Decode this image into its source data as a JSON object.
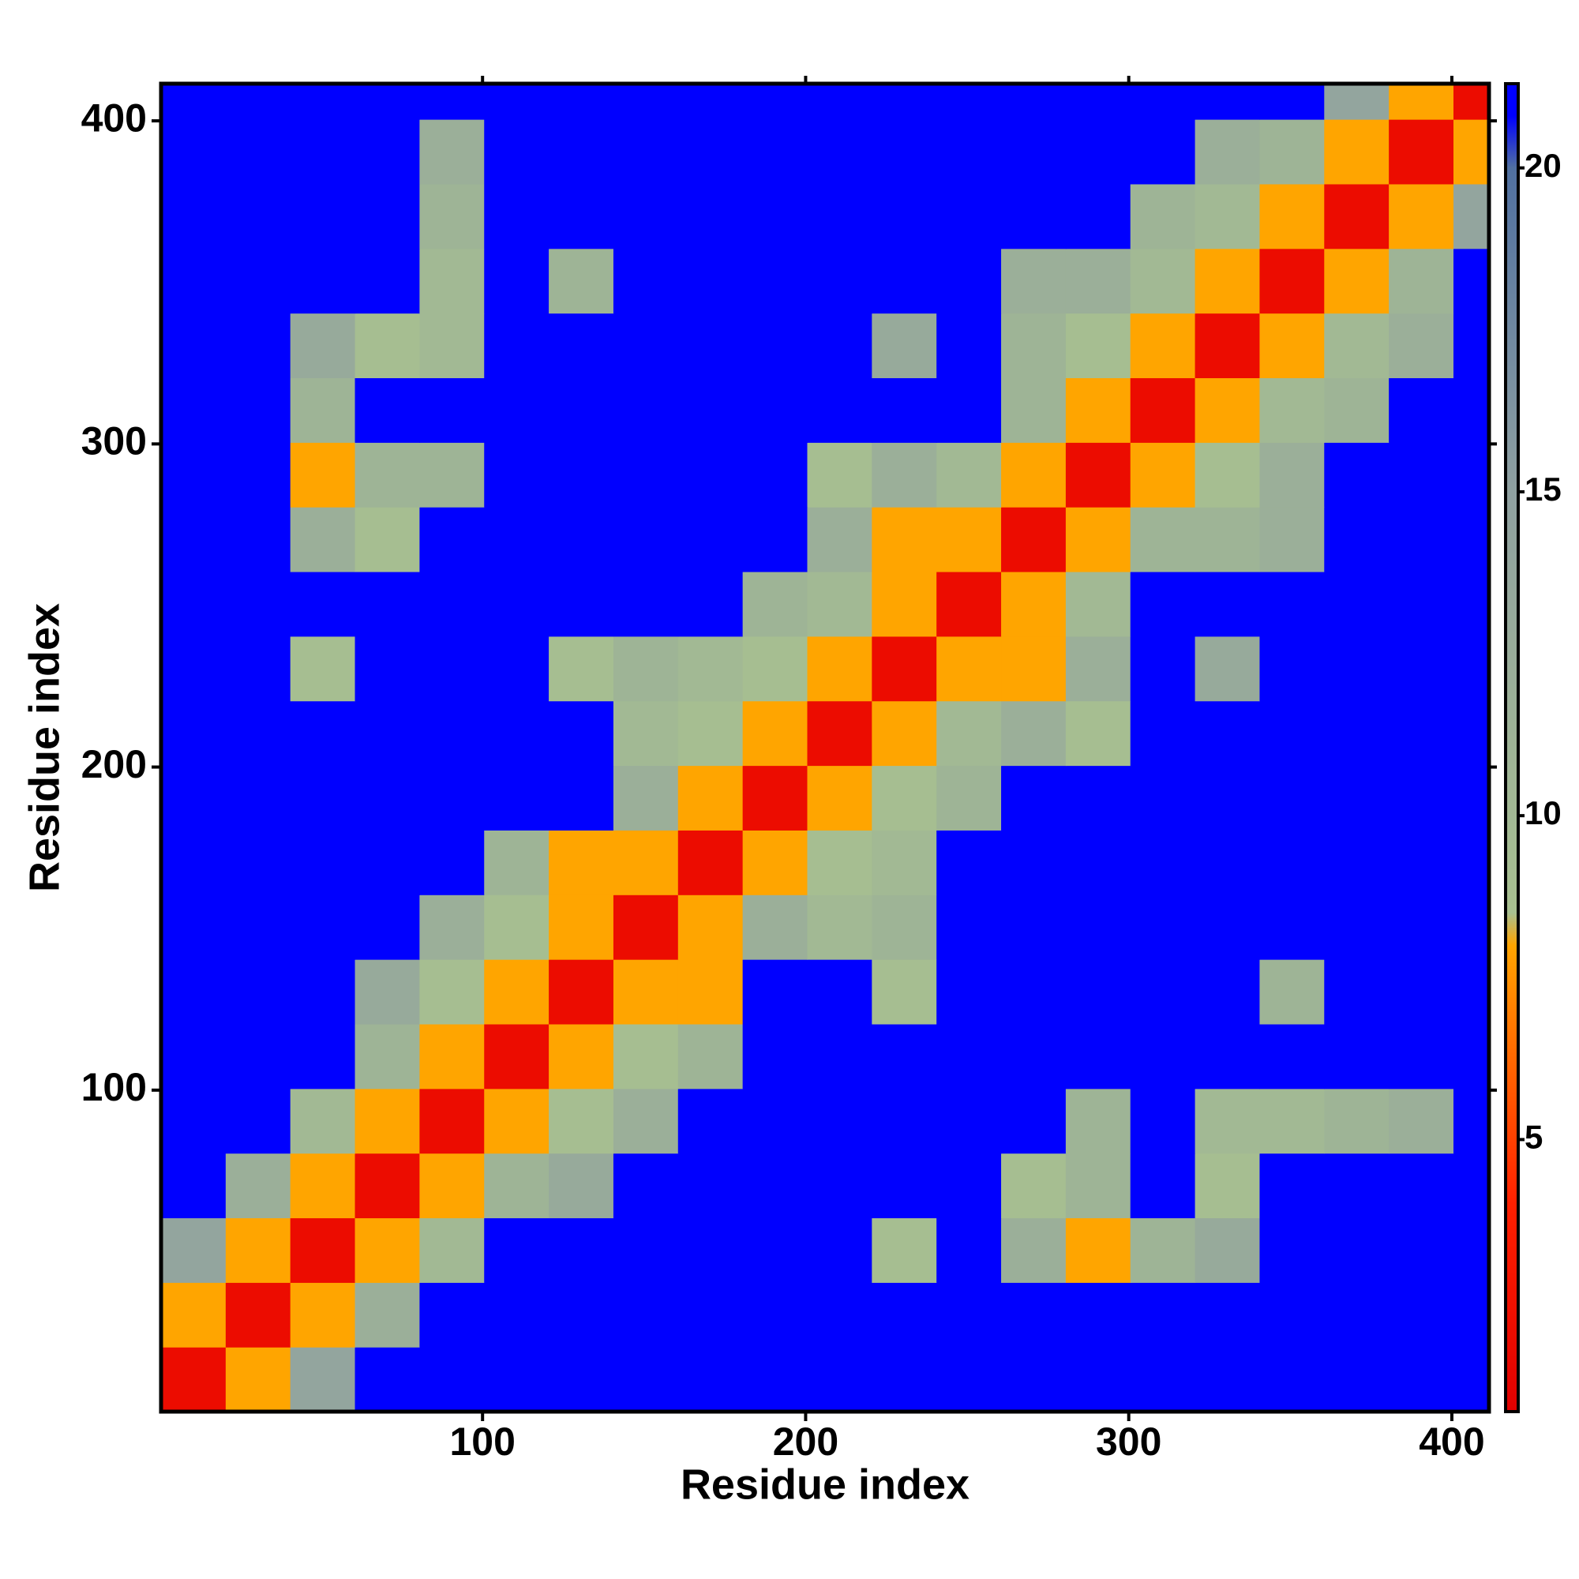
{
  "chart_data": {
    "type": "heatmap",
    "xlabel": "Residue index",
    "ylabel": "Residue index",
    "x_bins": [
      0.5,
      20.5,
      40.5,
      60.5,
      80.5,
      100.5,
      120.5,
      140.5,
      160.5,
      180.5,
      200.5,
      220.5,
      240.5,
      260.5,
      280.5,
      300.5,
      320.5,
      340.5,
      360.5,
      380.5,
      400.5,
      411.5
    ],
    "y_bins": [
      0.5,
      20.5,
      40.5,
      60.5,
      80.5,
      100.5,
      120.5,
      140.5,
      160.5,
      180.5,
      200.5,
      220.5,
      240.5,
      260.5,
      280.5,
      300.5,
      320.5,
      340.5,
      360.5,
      380.5,
      400.5,
      411.5
    ],
    "xlim": [
      0.5,
      411.5
    ],
    "ylim": [
      0.5,
      411.5
    ],
    "xticks": [
      100,
      200,
      300,
      400
    ],
    "yticks": [
      100,
      200,
      300,
      400
    ],
    "zlim": [
      0.8,
      21.3
    ],
    "colorbar_ticks": [
      5,
      10,
      15,
      20
    ],
    "colorscale": [
      [
        0.8,
        "#e00000"
      ],
      [
        4,
        "#ff2000"
      ],
      [
        7,
        "#ff8000"
      ],
      [
        8,
        "#ffa500"
      ],
      [
        8.5,
        "#a8c090"
      ],
      [
        15,
        "#8fa0a0"
      ],
      [
        20,
        "#5070a0"
      ],
      [
        20.8,
        "#0000ff"
      ],
      [
        21.3,
        "#0000ff"
      ]
    ],
    "values": [
      [
        2,
        8,
        14,
        21,
        21,
        21,
        21,
        21,
        21,
        21,
        21,
        21,
        21,
        21,
        21,
        21,
        21,
        21,
        21,
        21,
        21
      ],
      [
        8,
        2,
        8,
        12,
        21,
        21,
        21,
        21,
        21,
        21,
        21,
        21,
        21,
        21,
        21,
        21,
        21,
        21,
        21,
        21,
        21
      ],
      [
        14,
        8,
        2,
        8,
        10,
        21,
        21,
        21,
        21,
        21,
        21,
        9,
        21,
        12,
        8,
        11,
        13,
        21,
        21,
        21,
        21
      ],
      [
        21,
        12,
        8,
        2,
        8,
        11,
        13,
        21,
        21,
        21,
        21,
        21,
        21,
        9,
        11,
        21,
        9,
        21,
        21,
        21,
        21
      ],
      [
        21,
        21,
        10,
        8,
        2,
        8,
        9,
        12,
        21,
        21,
        21,
        21,
        21,
        21,
        11,
        21,
        10,
        10,
        11,
        12,
        21
      ],
      [
        21,
        21,
        21,
        11,
        8,
        2,
        8,
        9,
        11,
        21,
        21,
        21,
        21,
        21,
        21,
        21,
        21,
        21,
        21,
        21,
        21
      ],
      [
        21,
        21,
        21,
        13,
        9,
        8,
        2,
        8,
        8,
        21,
        21,
        9,
        21,
        21,
        21,
        21,
        21,
        11,
        21,
        21,
        21
      ],
      [
        21,
        21,
        21,
        21,
        12,
        9,
        8,
        2,
        8,
        12,
        10,
        11,
        21,
        21,
        21,
        21,
        21,
        21,
        21,
        21,
        21
      ],
      [
        21,
        21,
        21,
        21,
        21,
        11,
        8,
        8,
        2,
        8,
        9,
        10,
        21,
        21,
        21,
        21,
        21,
        21,
        21,
        21,
        21
      ],
      [
        21,
        21,
        21,
        21,
        21,
        21,
        21,
        12,
        8,
        2,
        8,
        9,
        11,
        21,
        21,
        21,
        21,
        21,
        21,
        21,
        21
      ],
      [
        21,
        21,
        21,
        21,
        21,
        21,
        21,
        10,
        9,
        8,
        2,
        8,
        10,
        12,
        9,
        21,
        21,
        21,
        21,
        21,
        21
      ],
      [
        21,
        21,
        9,
        21,
        21,
        21,
        9,
        11,
        10,
        9,
        8,
        2,
        8,
        8,
        12,
        21,
        13,
        21,
        21,
        21,
        21
      ],
      [
        21,
        21,
        21,
        21,
        21,
        21,
        21,
        21,
        21,
        11,
        10,
        8,
        2,
        8,
        10,
        21,
        21,
        21,
        21,
        21,
        21
      ],
      [
        21,
        21,
        12,
        9,
        21,
        21,
        21,
        21,
        21,
        21,
        12,
        8,
        8,
        2,
        8,
        11,
        11,
        12,
        21,
        21,
        21
      ],
      [
        21,
        21,
        8,
        11,
        11,
        21,
        21,
        21,
        21,
        21,
        9,
        12,
        10,
        8,
        2,
        8,
        9,
        12,
        21,
        21,
        21
      ],
      [
        21,
        21,
        11,
        21,
        21,
        21,
        21,
        21,
        21,
        21,
        21,
        21,
        21,
        11,
        8,
        2,
        8,
        10,
        11,
        21,
        21
      ],
      [
        21,
        21,
        13,
        9,
        10,
        21,
        21,
        21,
        21,
        21,
        21,
        13,
        21,
        11,
        9,
        8,
        2,
        8,
        10,
        12,
        21
      ],
      [
        21,
        21,
        21,
        21,
        10,
        21,
        11,
        21,
        21,
        21,
        21,
        21,
        21,
        12,
        12,
        10,
        8,
        2,
        8,
        11,
        21
      ],
      [
        21,
        21,
        21,
        21,
        11,
        21,
        21,
        21,
        21,
        21,
        21,
        21,
        21,
        21,
        21,
        11,
        10,
        8,
        2,
        8,
        14
      ],
      [
        21,
        21,
        21,
        21,
        12,
        21,
        21,
        21,
        21,
        21,
        21,
        21,
        21,
        21,
        21,
        21,
        12,
        11,
        8,
        2,
        8
      ],
      [
        21,
        21,
        21,
        21,
        21,
        21,
        21,
        21,
        21,
        21,
        21,
        21,
        21,
        21,
        21,
        21,
        21,
        21,
        14,
        8,
        2
      ]
    ]
  }
}
